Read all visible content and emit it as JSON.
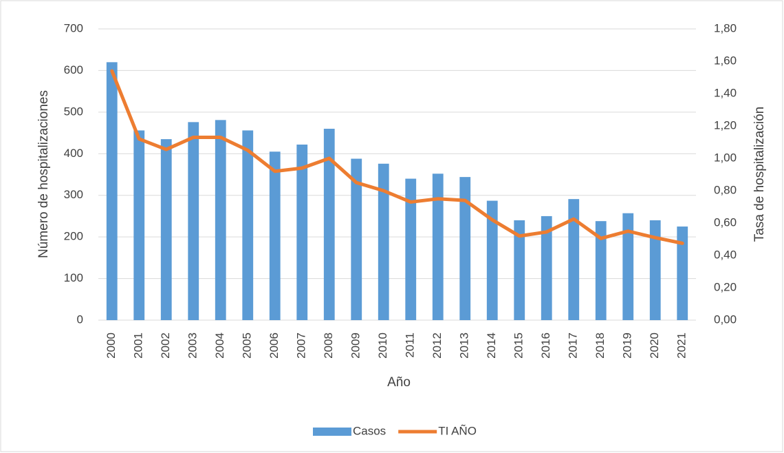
{
  "chart_data": {
    "type": "bar-line",
    "x_label": "Año",
    "y_label": "Número de hospitalizaciones",
    "y2_label": "Tasa de hospitalización",
    "categories": [
      "2000",
      "2001",
      "2002",
      "2003",
      "2004",
      "2005",
      "2006",
      "2007",
      "2008",
      "2009",
      "2010",
      "2011",
      "2012",
      "2013",
      "2014",
      "2015",
      "2016",
      "2017",
      "2018",
      "2019",
      "2020",
      "2021"
    ],
    "series": [
      {
        "name": "Casos",
        "type": "bar",
        "color": "#5b9bd5",
        "axis": "y",
        "values": [
          620,
          456,
          435,
          476,
          481,
          456,
          405,
          422,
          460,
          388,
          376,
          340,
          352,
          344,
          287,
          240,
          250,
          291,
          238,
          257,
          240,
          225
        ]
      },
      {
        "name": "TI AÑO",
        "type": "line",
        "color": "#ed7d31",
        "axis": "y2",
        "values": [
          1.54,
          1.12,
          1.055,
          1.13,
          1.13,
          1.05,
          0.92,
          0.94,
          1.0,
          0.85,
          0.8,
          0.73,
          0.75,
          0.74,
          0.62,
          0.52,
          0.545,
          0.625,
          0.505,
          0.55,
          0.51,
          0.475
        ]
      }
    ],
    "ylim": [
      0,
      700
    ],
    "yticks": [
      0,
      100,
      200,
      300,
      400,
      500,
      600,
      700
    ],
    "y2lim": [
      0,
      1.8
    ],
    "y2ticks": [
      {
        "value": 0,
        "label": "0,00"
      },
      {
        "value": 0.2,
        "label": "0,20"
      },
      {
        "value": 0.4,
        "label": "0,40"
      },
      {
        "value": 0.6,
        "label": "0,60"
      },
      {
        "value": 0.8,
        "label": "0,80"
      },
      {
        "value": 1.0,
        "label": "1,00"
      },
      {
        "value": 1.2,
        "label": "1,20"
      },
      {
        "value": 1.4,
        "label": "1,40"
      },
      {
        "value": 1.6,
        "label": "1,60"
      },
      {
        "value": 1.8,
        "label": "1,80"
      }
    ],
    "grid": true,
    "legend": "bottom"
  }
}
